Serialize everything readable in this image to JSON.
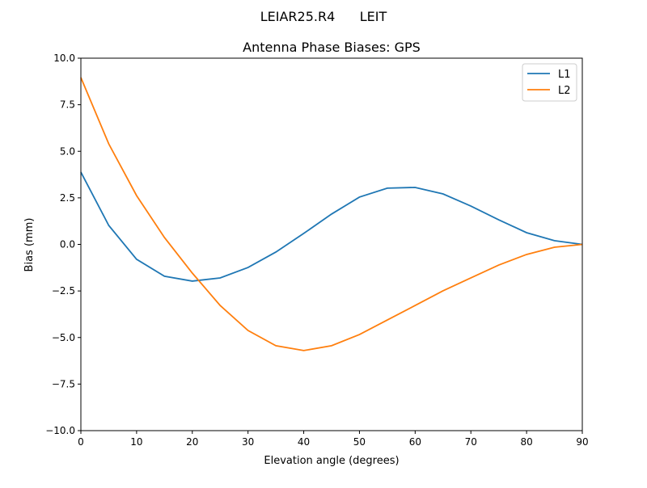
{
  "chart_data": {
    "type": "line",
    "suptitle": "LEIAR25.R4      LEIT",
    "title": "Antenna Phase Biases: GPS",
    "xlabel": "Elevation angle (degrees)",
    "ylabel": "Bias (mm)",
    "xlim": [
      0,
      90
    ],
    "ylim": [
      -10,
      10
    ],
    "xticks": [
      0,
      10,
      20,
      30,
      40,
      50,
      60,
      70,
      80,
      90
    ],
    "xtick_labels": [
      "0",
      "10",
      "20",
      "30",
      "40",
      "50",
      "60",
      "70",
      "80",
      "90"
    ],
    "yticks": [
      -10,
      -7.5,
      -5,
      -2.5,
      0,
      2.5,
      5,
      7.5,
      10
    ],
    "ytick_labels": [
      "−10.0",
      "−7.5",
      "−5.0",
      "−2.5",
      "0.0",
      "2.5",
      "5.0",
      "7.5",
      "10.0"
    ],
    "grid": false,
    "legend_position": "upper right",
    "x": [
      0,
      5,
      10,
      15,
      20,
      25,
      30,
      35,
      40,
      45,
      50,
      55,
      60,
      65,
      70,
      75,
      80,
      85,
      90
    ],
    "series": [
      {
        "name": "L1",
        "color": "#1f77b4",
        "values": [
          3.88,
          1.02,
          -0.8,
          -1.71,
          -1.97,
          -1.8,
          -1.24,
          -0.41,
          0.59,
          1.63,
          2.54,
          3.02,
          3.06,
          2.71,
          2.06,
          1.32,
          0.63,
          0.2,
          0.0
        ]
      },
      {
        "name": "L2",
        "color": "#ff7f0e",
        "values": [
          8.96,
          5.4,
          2.62,
          0.37,
          -1.54,
          -3.28,
          -4.62,
          -5.44,
          -5.7,
          -5.44,
          -4.84,
          -4.06,
          -3.28,
          -2.49,
          -1.8,
          -1.11,
          -0.54,
          -0.15,
          0.0
        ]
      }
    ]
  }
}
